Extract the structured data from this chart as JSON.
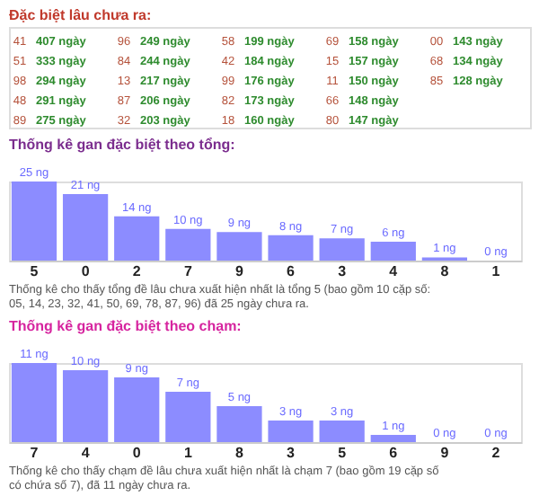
{
  "chart_data": [
    {
      "type": "other",
      "title": "Đặc biệt lâu chưa ra:",
      "categories": [
        "41",
        "51",
        "98",
        "48",
        "89",
        "96",
        "84",
        "13",
        "87",
        "32",
        "58",
        "42",
        "99",
        "82",
        "18",
        "69",
        "15",
        "11",
        "66",
        "80",
        "00",
        "68",
        "85"
      ],
      "values": [
        407,
        333,
        294,
        291,
        275,
        249,
        244,
        217,
        206,
        203,
        199,
        184,
        176,
        173,
        160,
        158,
        157,
        150,
        148,
        147,
        143,
        134,
        128
      ],
      "value_labels": [
        "407 ngày",
        "333 ngày",
        "294 ngày",
        "291 ngày",
        "275 ngày",
        "249 ngày",
        "244 ngày",
        "217 ngày",
        "206 ngày",
        "203 ngày",
        "199 ngày",
        "184 ngày",
        "176 ngày",
        "173 ngày",
        "160 ngày",
        "158 ngày",
        "157 ngày",
        "150 ngày",
        "148 ngày",
        "147 ngày",
        "143 ngày",
        "134 ngày",
        "128 ngày"
      ]
    },
    {
      "type": "bar",
      "title": "Thống kê gan đặc biệt theo tổng:",
      "color": "#8c8cff",
      "categories": [
        "5",
        "0",
        "2",
        "7",
        "9",
        "6",
        "3",
        "4",
        "8",
        "1"
      ],
      "values": [
        25,
        21,
        14,
        10,
        9,
        8,
        7,
        6,
        1,
        0
      ],
      "value_labels": [
        "25 ng",
        "21 ng",
        "14 ng",
        "10 ng",
        "9 ng",
        "8 ng",
        "7 ng",
        "6 ng",
        "1 ng",
        "0 ng"
      ],
      "annotations": [
        "Thống kê cho thấy tổng đề lâu chưa xuất hiện nhất là tổng 5 (bao gồm 10 cặp số: 05, 14, 23, 32, 41, 50, 69, 78, 87, 96) đã 25 ngày chưa ra."
      ]
    },
    {
      "type": "bar",
      "title": "Thống kê gan đặc biệt theo chạm:",
      "color": "#8c8cff",
      "categories": [
        "7",
        "4",
        "0",
        "1",
        "8",
        "3",
        "5",
        "6",
        "9",
        "2"
      ],
      "values": [
        11,
        10,
        9,
        7,
        5,
        3,
        3,
        1,
        0,
        0
      ],
      "value_labels": [
        "11 ng",
        "10 ng",
        "9 ng",
        "7 ng",
        "5 ng",
        "3 ng",
        "3 ng",
        "1 ng",
        "0 ng",
        "0 ng"
      ],
      "annotations": [
        "Thống kê cho thấy chạm đề lâu chưa xuất hiện nhất là chạm 7 (bao gồm 19 cặp số có chứa số 7), đã 11 ngày chưa ra."
      ]
    }
  ]
}
